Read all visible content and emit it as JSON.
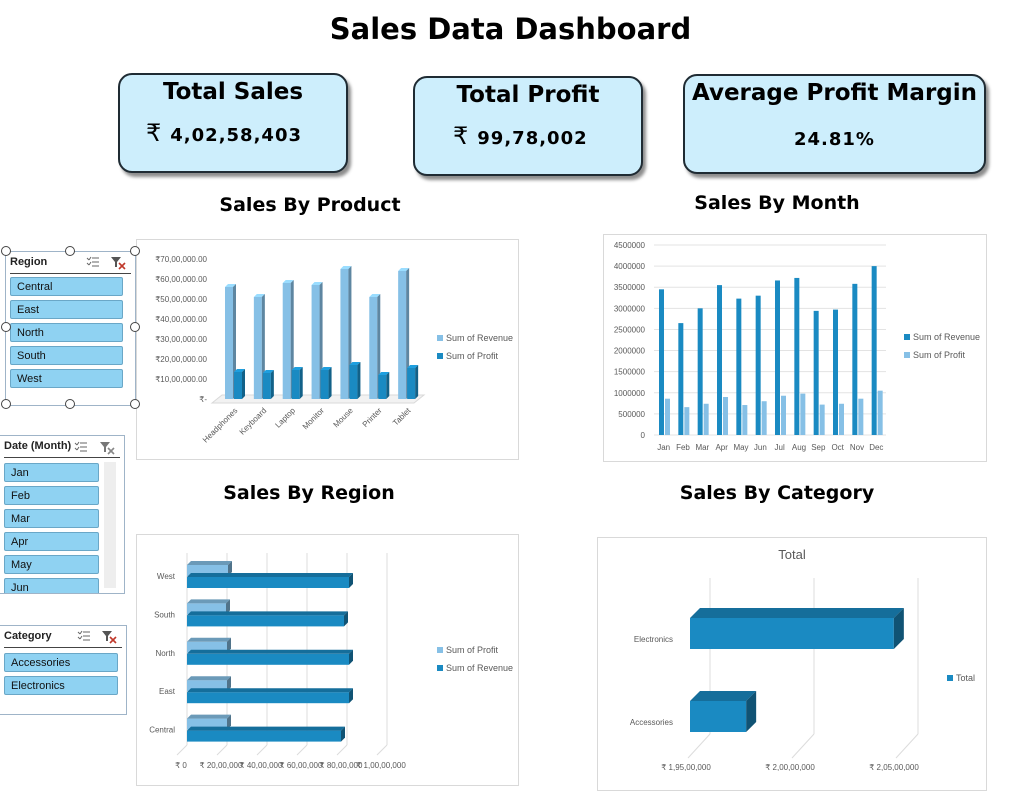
{
  "dashboard": {
    "title": "Sales Data Dashboard"
  },
  "kpis": {
    "total_sales": {
      "title": "Total Sales",
      "currency": "₹",
      "value": "4,02,58,403"
    },
    "total_profit": {
      "title": "Total Profit",
      "currency": "₹",
      "value": "99,78,002"
    },
    "avg_margin": {
      "title": "Average Profit Margin",
      "value": "24.81%"
    }
  },
  "sections": {
    "by_product": "Sales By Product",
    "by_month": "Sales By Month",
    "by_region": "Sales By Region",
    "by_category": "Sales By Category"
  },
  "slicers": {
    "region": {
      "header": "Region",
      "items": [
        "Central",
        "East",
        "North",
        "South",
        "West"
      ]
    },
    "month": {
      "header": "Date (Month)",
      "items": [
        "Jan",
        "Feb",
        "Mar",
        "Apr",
        "May",
        "Jun"
      ]
    },
    "category": {
      "header": "Category",
      "items": [
        "Accessories",
        "Electronics"
      ]
    }
  },
  "icons": {
    "multiselect": "multi-select-icon",
    "clear_filter": "clear-filter-icon"
  },
  "colors": {
    "kpi_fill": "#cdeefc",
    "revenue": "#1a8ac2",
    "profit": "#86c0e6",
    "slicer_item": "#8fd2f2"
  },
  "chart_data": [
    {
      "id": "product",
      "type": "bar",
      "categories": [
        "Headphones",
        "Keyboard",
        "Laptop",
        "Monitor",
        "Mouse",
        "Printer",
        "Tablet"
      ],
      "series": [
        {
          "name": "Sum of Revenue",
          "values": [
            5600000,
            5100000,
            5800000,
            5700000,
            6500000,
            5100000,
            6400000
          ]
        },
        {
          "name": "Sum of Profit",
          "values": [
            1350000,
            1300000,
            1450000,
            1450000,
            1700000,
            1200000,
            1550000
          ]
        }
      ],
      "y_ticks": [
        "₹-",
        "₹10,00,000.00",
        "₹20,00,000.00",
        "₹30,00,000.00",
        "₹40,00,000.00",
        "₹50,00,000.00",
        "₹60,00,000.00",
        "₹70,00,000.00"
      ],
      "ylim": [
        0,
        7000000
      ],
      "legend": "right"
    },
    {
      "id": "month",
      "type": "bar",
      "categories": [
        "Jan",
        "Feb",
        "Mar",
        "Apr",
        "May",
        "Jun",
        "Jul",
        "Aug",
        "Sep",
        "Oct",
        "Nov",
        "Dec"
      ],
      "series": [
        {
          "name": "Sum of Revenue",
          "values": [
            3450000,
            2650000,
            3000000,
            3550000,
            3230000,
            3300000,
            3660000,
            3720000,
            2940000,
            2970000,
            3580000,
            4000000
          ]
        },
        {
          "name": "Sum of Profit",
          "values": [
            860000,
            660000,
            740000,
            900000,
            710000,
            800000,
            930000,
            980000,
            720000,
            740000,
            860000,
            1050000
          ]
        }
      ],
      "y_ticks": [
        "0",
        "500000",
        "1000000",
        "1500000",
        "2000000",
        "2500000",
        "3000000",
        "3500000",
        "4000000",
        "4500000"
      ],
      "ylim": [
        0,
        4500000
      ],
      "legend": "right"
    },
    {
      "id": "region",
      "type": "bar",
      "orientation": "horizontal",
      "categories": [
        "Central",
        "East",
        "North",
        "South",
        "West"
      ],
      "series": [
        {
          "name": "Sum of Profit",
          "values": [
            2000000,
            2000000,
            2000000,
            1950000,
            2050000
          ]
        },
        {
          "name": "Sum of Revenue",
          "values": [
            7700000,
            8100000,
            8100000,
            7850000,
            8100000
          ]
        }
      ],
      "x_ticks": [
        "₹ 0",
        "₹ 20,00,000",
        "₹ 40,00,000",
        "₹ 60,00,000",
        "₹ 80,00,000",
        "₹ 1,00,00,000"
      ],
      "xlim": [
        0,
        10000000
      ],
      "legend": "right"
    },
    {
      "id": "category",
      "type": "bar",
      "orientation": "horizontal",
      "title": "Total",
      "categories": [
        "Accessories",
        "Electronics"
      ],
      "series": [
        {
          "name": "Total",
          "values": [
            19770000,
            20480000
          ]
        }
      ],
      "x_ticks": [
        "₹ 1,95,00,000",
        "₹ 2,00,00,000",
        "₹ 2,05,00,000"
      ],
      "xlim": [
        19500000,
        20500000
      ],
      "legend": "right"
    }
  ]
}
